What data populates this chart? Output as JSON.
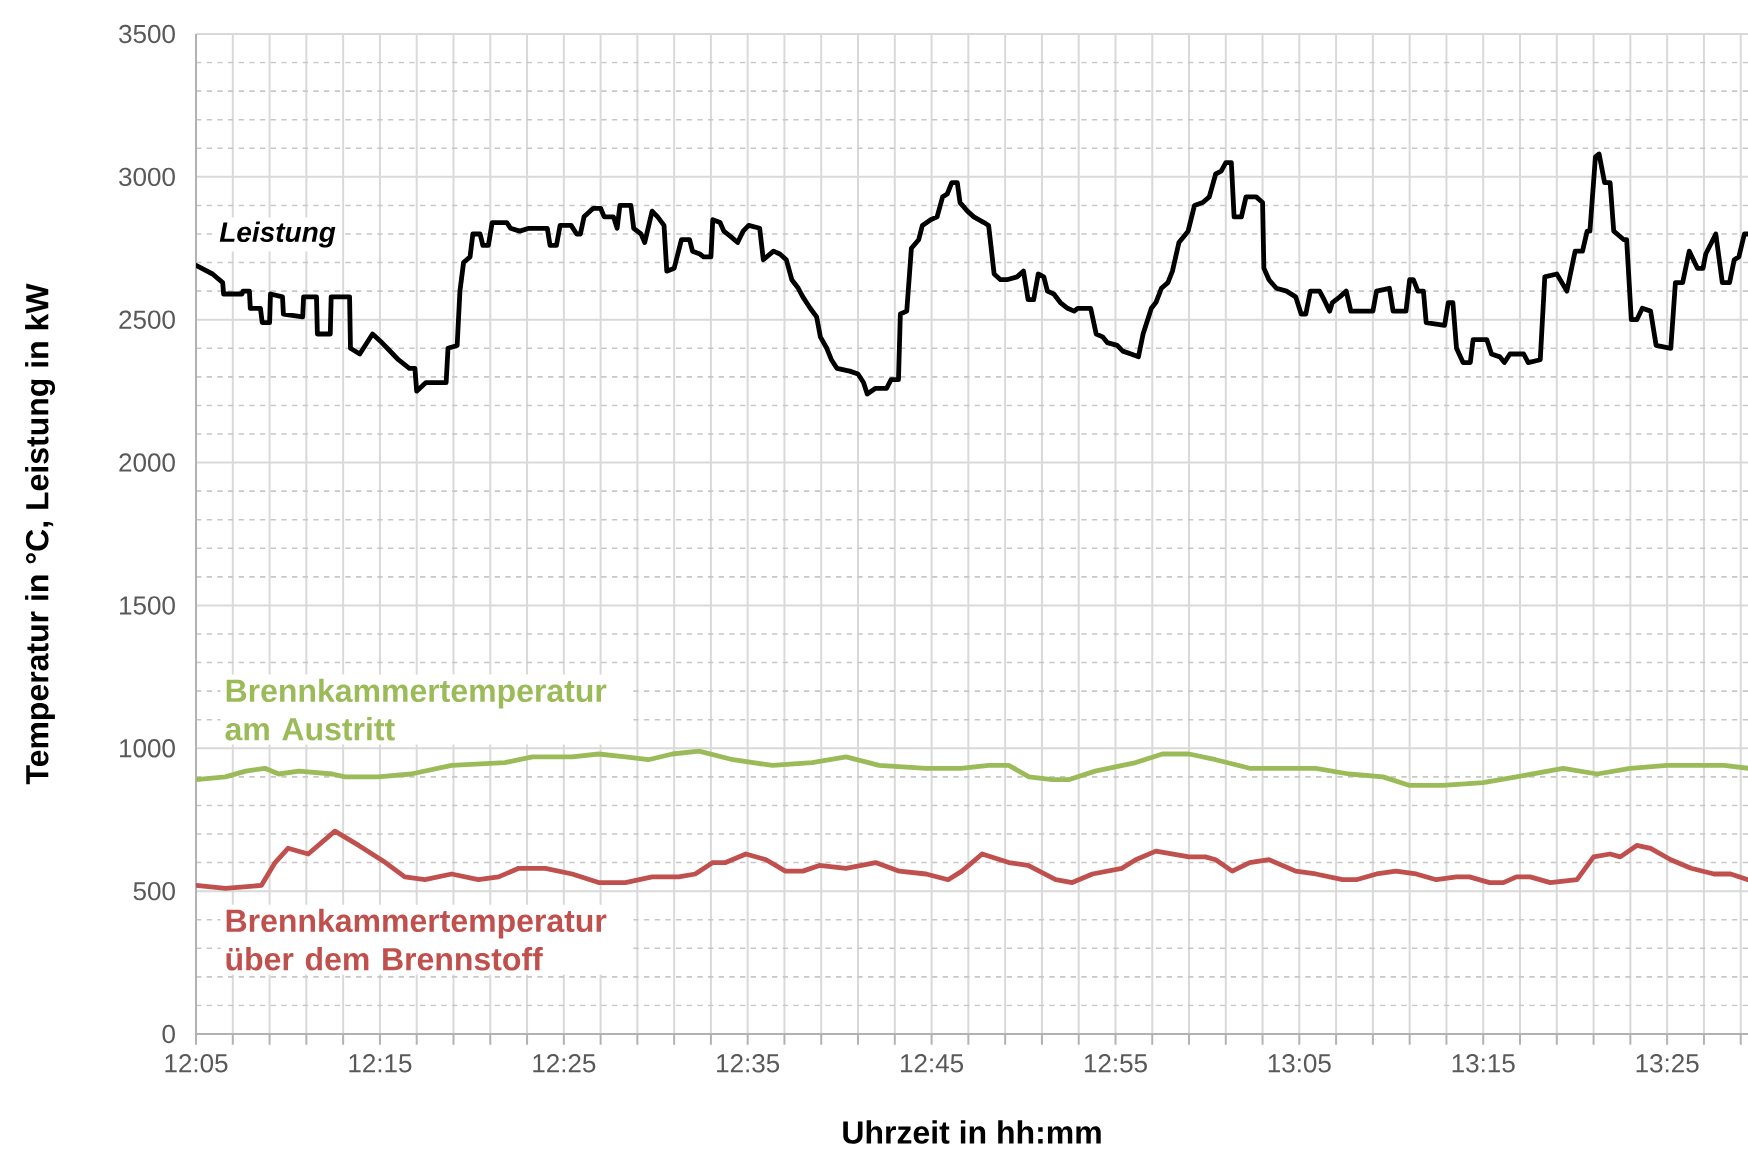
{
  "chart_data": {
    "type": "line",
    "xlabel": "Uhrzeit in hh:mm",
    "ylabel": "Temperatur in °C, Leistung in kW",
    "xlim": [
      12.0833,
      13.49
    ],
    "ylim": [
      0,
      3500
    ],
    "xticks": [
      {
        "value": 12.0833,
        "label": "12:05"
      },
      {
        "value": 12.25,
        "label": "12:15"
      },
      {
        "value": 12.4167,
        "label": "12:25"
      },
      {
        "value": 12.5833,
        "label": "12:35"
      },
      {
        "value": 12.75,
        "label": "12:45"
      },
      {
        "value": 12.9167,
        "label": "12:55"
      },
      {
        "value": 13.0833,
        "label": "13:05"
      },
      {
        "value": 13.25,
        "label": "13:15"
      },
      {
        "value": 13.4167,
        "label": "13:25"
      }
    ],
    "yticks": [
      0,
      500,
      1000,
      1500,
      2000,
      2500,
      3000,
      3500
    ],
    "grid": true,
    "series": [
      {
        "name": "Leistung",
        "color": "#000000",
        "x": [
          12.0833,
          12.0983,
          12.1075,
          12.1083,
          12.125,
          12.1258,
          12.1317,
          12.1325,
          12.1417,
          12.1433,
          12.15,
          12.1508,
          12.1617,
          12.1625,
          12.18,
          12.1808,
          12.1925,
          12.1933,
          12.205,
          12.2058,
          12.2225,
          12.2233,
          12.2317,
          12.2433,
          12.2517,
          12.2567,
          12.2667,
          12.2767,
          12.2817,
          12.2833,
          12.2917,
          12.31,
          12.3117,
          12.32,
          12.3225,
          12.3258,
          12.3317,
          12.3342,
          12.3408,
          12.3433,
          12.3483,
          12.3517,
          12.365,
          12.3683,
          12.3767,
          12.385,
          12.4017,
          12.4042,
          12.41,
          12.4133,
          12.4233,
          12.4283,
          12.4317,
          12.435,
          12.4433,
          12.45,
          12.4533,
          12.4617,
          12.465,
          12.4675,
          12.4775,
          12.48,
          12.4867,
          12.49,
          12.4967,
          12.5017,
          12.5075,
          12.51,
          12.5167,
          12.5233,
          12.5307,
          12.5333,
          12.54,
          12.5433,
          12.55,
          12.5517,
          12.5583,
          12.5617,
          12.5683,
          12.5742,
          12.5792,
          12.5842,
          12.5942,
          12.5975,
          12.6067,
          12.6125,
          12.6183,
          12.6233,
          12.6292,
          12.6333,
          12.64,
          12.6458,
          12.6492,
          12.655,
          12.6592,
          12.6642,
          12.6758,
          12.6833,
          12.6883,
          12.6917,
          12.6992,
          12.7092,
          12.7133,
          12.72,
          12.7217,
          12.7275,
          12.7317,
          12.7383,
          12.7417,
          12.7492,
          12.755,
          12.76,
          12.7642,
          12.7683,
          12.7733,
          12.7758,
          12.7825,
          12.7883,
          12.7975,
          12.8017,
          12.8067,
          12.8125,
          12.8183,
          12.8275,
          12.8333,
          12.8375,
          12.8425,
          12.8467,
          12.8517,
          12.855,
          12.8608,
          12.8667,
          12.8733,
          12.8792,
          12.8825,
          12.8942,
          12.8992,
          12.905,
          12.9092,
          12.9183,
          12.9233,
          12.9308,
          12.9375,
          12.9417,
          12.9492,
          12.9533,
          12.9583,
          12.9642,
          12.9683,
          12.9742,
          12.9825,
          12.9883,
          12.9958,
          13.0017,
          13.0075,
          13.0125,
          13.0167,
          13.0217,
          13.0242,
          13.0308,
          13.035,
          13.0442,
          13.05,
          13.0512,
          13.0558,
          13.0625,
          13.0717,
          13.08,
          13.085,
          13.0892,
          13.0933,
          13.1017,
          13.1058,
          13.1108,
          13.1133,
          13.12,
          13.1258,
          13.13,
          13.15,
          13.1533,
          13.165,
          13.1683,
          13.18,
          13.1833,
          13.1867,
          13.1908,
          13.1958,
          13.1983,
          13.215,
          13.2183,
          13.2225,
          13.2258,
          13.2317,
          13.2383,
          13.2408,
          13.2533,
          13.2575,
          13.265,
          13.2692,
          13.2742,
          13.2867,
          13.2908,
          13.3017,
          13.3058,
          13.3167,
          13.3258,
          13.3333,
          13.34,
          13.3442,
          13.3467,
          13.3517,
          13.355,
          13.36,
          13.365,
          13.3683,
          13.3775,
          13.38,
          13.3842,
          13.3892,
          13.3942,
          13.4017,
          13.4067,
          13.42,
          13.4242,
          13.4308,
          13.4367,
          13.4442,
          13.4492,
          13.4517,
          13.4608,
          13.4667,
          13.4733,
          13.4775,
          13.4817,
          13.4867,
          13.49
        ],
        "values": [
          2690,
          2660,
          2630,
          2590,
          2590,
          2600,
          2600,
          2540,
          2540,
          2490,
          2490,
          2590,
          2580,
          2520,
          2510,
          2580,
          2580,
          2450,
          2450,
          2580,
          2580,
          2400,
          2380,
          2450,
          2420,
          2400,
          2360,
          2330,
          2330,
          2250,
          2280,
          2280,
          2400,
          2410,
          2600,
          2700,
          2720,
          2800,
          2800,
          2760,
          2760,
          2840,
          2840,
          2820,
          2810,
          2820,
          2820,
          2760,
          2760,
          2830,
          2830,
          2800,
          2800,
          2860,
          2890,
          2890,
          2860,
          2860,
          2820,
          2900,
          2900,
          2820,
          2800,
          2770,
          2880,
          2860,
          2830,
          2670,
          2680,
          2780,
          2780,
          2740,
          2730,
          2720,
          2720,
          2850,
          2840,
          2810,
          2790,
          2770,
          2810,
          2830,
          2820,
          2710,
          2740,
          2730,
          2710,
          2640,
          2610,
          2580,
          2540,
          2510,
          2440,
          2400,
          2360,
          2330,
          2320,
          2310,
          2280,
          2240,
          2260,
          2260,
          2290,
          2290,
          2520,
          2530,
          2750,
          2780,
          2830,
          2850,
          2860,
          2930,
          2940,
          2980,
          2980,
          2910,
          2880,
          2860,
          2840,
          2830,
          2660,
          2640,
          2640,
          2650,
          2670,
          2570,
          2570,
          2660,
          2650,
          2600,
          2590,
          2560,
          2540,
          2530,
          2540,
          2540,
          2450,
          2440,
          2420,
          2410,
          2390,
          2380,
          2370,
          2450,
          2540,
          2560,
          2610,
          2630,
          2670,
          2770,
          2810,
          2900,
          2910,
          2930,
          3010,
          3020,
          3050,
          3050,
          2860,
          2860,
          2930,
          2930,
          2910,
          2680,
          2640,
          2610,
          2600,
          2580,
          2520,
          2520,
          2600,
          2600,
          2570,
          2530,
          2560,
          2580,
          2600,
          2530,
          2530,
          2600,
          2610,
          2530,
          2530,
          2640,
          2640,
          2600,
          2600,
          2490,
          2480,
          2560,
          2560,
          2400,
          2350,
          2350,
          2430,
          2430,
          2380,
          2370,
          2350,
          2380,
          2380,
          2350,
          2360,
          2650,
          2660,
          2600,
          2740,
          2740,
          2810,
          2810,
          3070,
          3080,
          2980,
          2980,
          2810,
          2780,
          2780,
          2500,
          2500,
          2540,
          2530,
          2410,
          2400,
          2630,
          2630,
          2740,
          2680,
          2680,
          2730,
          2800,
          2630,
          2630,
          2710,
          2720,
          2800,
          2800
        ]
      },
      {
        "name": "Brennkammertemperatur am Austritt",
        "color": "#9bbb59",
        "x": [
          12.0833,
          12.11,
          12.1283,
          12.1458,
          12.1583,
          12.1767,
          12.2067,
          12.2183,
          12.2483,
          12.2783,
          12.315,
          12.3633,
          12.3883,
          12.4242,
          12.4483,
          12.4725,
          12.4933,
          12.515,
          12.5392,
          12.57,
          12.6058,
          12.6417,
          12.6725,
          12.7025,
          12.745,
          12.7767,
          12.8017,
          12.82,
          12.8383,
          12.8592,
          12.8742,
          12.8983,
          12.935,
          12.9592,
          12.9833,
          13.0075,
          13.0383,
          13.0683,
          13.0983,
          13.1283,
          13.1592,
          13.1833,
          13.2133,
          13.25,
          13.28,
          13.3225,
          13.3533,
          13.3833,
          13.4167,
          13.4683,
          13.49
        ],
        "values": [
          890,
          900,
          920,
          930,
          910,
          920,
          910,
          900,
          900,
          910,
          940,
          950,
          970,
          970,
          980,
          970,
          960,
          980,
          990,
          960,
          940,
          950,
          970,
          940,
          930,
          930,
          940,
          940,
          900,
          890,
          890,
          920,
          950,
          980,
          980,
          960,
          930,
          930,
          930,
          910,
          900,
          870,
          870,
          880,
          900,
          930,
          910,
          930,
          940,
          940,
          930
        ]
      },
      {
        "name": "Brennkammertemperatur über dem Brennstoff",
        "color": "#c0504d",
        "x": [
          12.0833,
          12.11,
          12.1425,
          12.155,
          12.1667,
          12.185,
          12.2092,
          12.2308,
          12.255,
          12.2725,
          12.2908,
          12.315,
          12.3392,
          12.3575,
          12.3758,
          12.4,
          12.4242,
          12.4483,
          12.4725,
          12.4967,
          12.5208,
          12.5358,
          12.5517,
          12.5633,
          12.5817,
          12.6,
          12.6175,
          12.6333,
          12.6483,
          12.6725,
          12.6992,
          12.7208,
          12.745,
          12.765,
          12.7775,
          12.7958,
          12.82,
          12.8375,
          12.8625,
          12.8775,
          12.8958,
          12.9225,
          12.935,
          12.9533,
          12.9833,
          12.9983,
          13.0075,
          13.0225,
          13.0383,
          13.0558,
          13.08,
          13.0983,
          13.1225,
          13.135,
          13.1533,
          13.1708,
          13.1892,
          13.2075,
          13.2258,
          13.2375,
          13.2558,
          13.2683,
          13.28,
          13.2925,
          13.3108,
          13.335,
          13.35,
          13.365,
          13.3742,
          13.3892,
          13.4017,
          13.42,
          13.4383,
          13.4592,
          13.4742,
          13.49
        ],
        "values": [
          520,
          510,
          520,
          600,
          650,
          630,
          710,
          660,
          600,
          550,
          540,
          560,
          540,
          550,
          580,
          580,
          560,
          530,
          530,
          550,
          550,
          560,
          600,
          600,
          630,
          610,
          570,
          570,
          590,
          580,
          600,
          570,
          560,
          540,
          570,
          630,
          600,
          590,
          540,
          530,
          560,
          580,
          610,
          640,
          620,
          620,
          610,
          570,
          600,
          610,
          570,
          560,
          540,
          540,
          560,
          570,
          560,
          540,
          550,
          550,
          530,
          530,
          550,
          550,
          530,
          540,
          620,
          630,
          620,
          660,
          650,
          610,
          580,
          560,
          560,
          540
        ]
      }
    ]
  }
}
